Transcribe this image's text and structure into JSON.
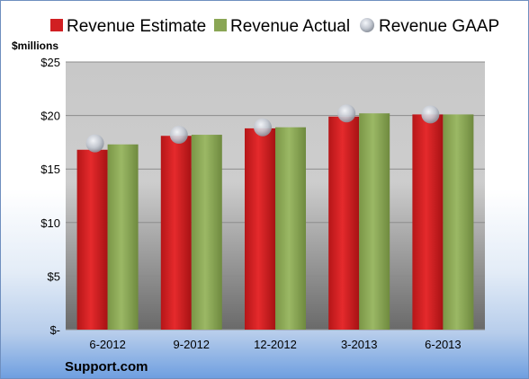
{
  "brand": "Support.com",
  "colors": {
    "estimate": "#d11f22",
    "actual": "#8aa655",
    "gaap": "#bfc4cc"
  },
  "chart_data": {
    "type": "bar",
    "title": "",
    "ylabel": "$millions",
    "xlabel": "",
    "categories": [
      "6-2012",
      "9-2012",
      "12-2012",
      "3-2013",
      "6-2013"
    ],
    "series": [
      {
        "name": "Revenue Estimate",
        "type": "bar",
        "values": [
          16.8,
          18.1,
          18.8,
          19.9,
          20.1
        ]
      },
      {
        "name": "Revenue Actual",
        "type": "bar",
        "values": [
          17.3,
          18.2,
          18.9,
          20.2,
          20.1
        ]
      },
      {
        "name": "Revenue GAAP",
        "type": "marker",
        "values": [
          17.4,
          18.2,
          18.9,
          20.2,
          20.1
        ]
      }
    ],
    "ylim": [
      0,
      25
    ],
    "yticks": [
      0,
      5,
      10,
      15,
      20,
      25
    ],
    "ytick_labels": [
      "$-",
      "$5",
      "$10",
      "$15",
      "$20",
      "$25"
    ],
    "grid": true,
    "legend_position": "top"
  }
}
